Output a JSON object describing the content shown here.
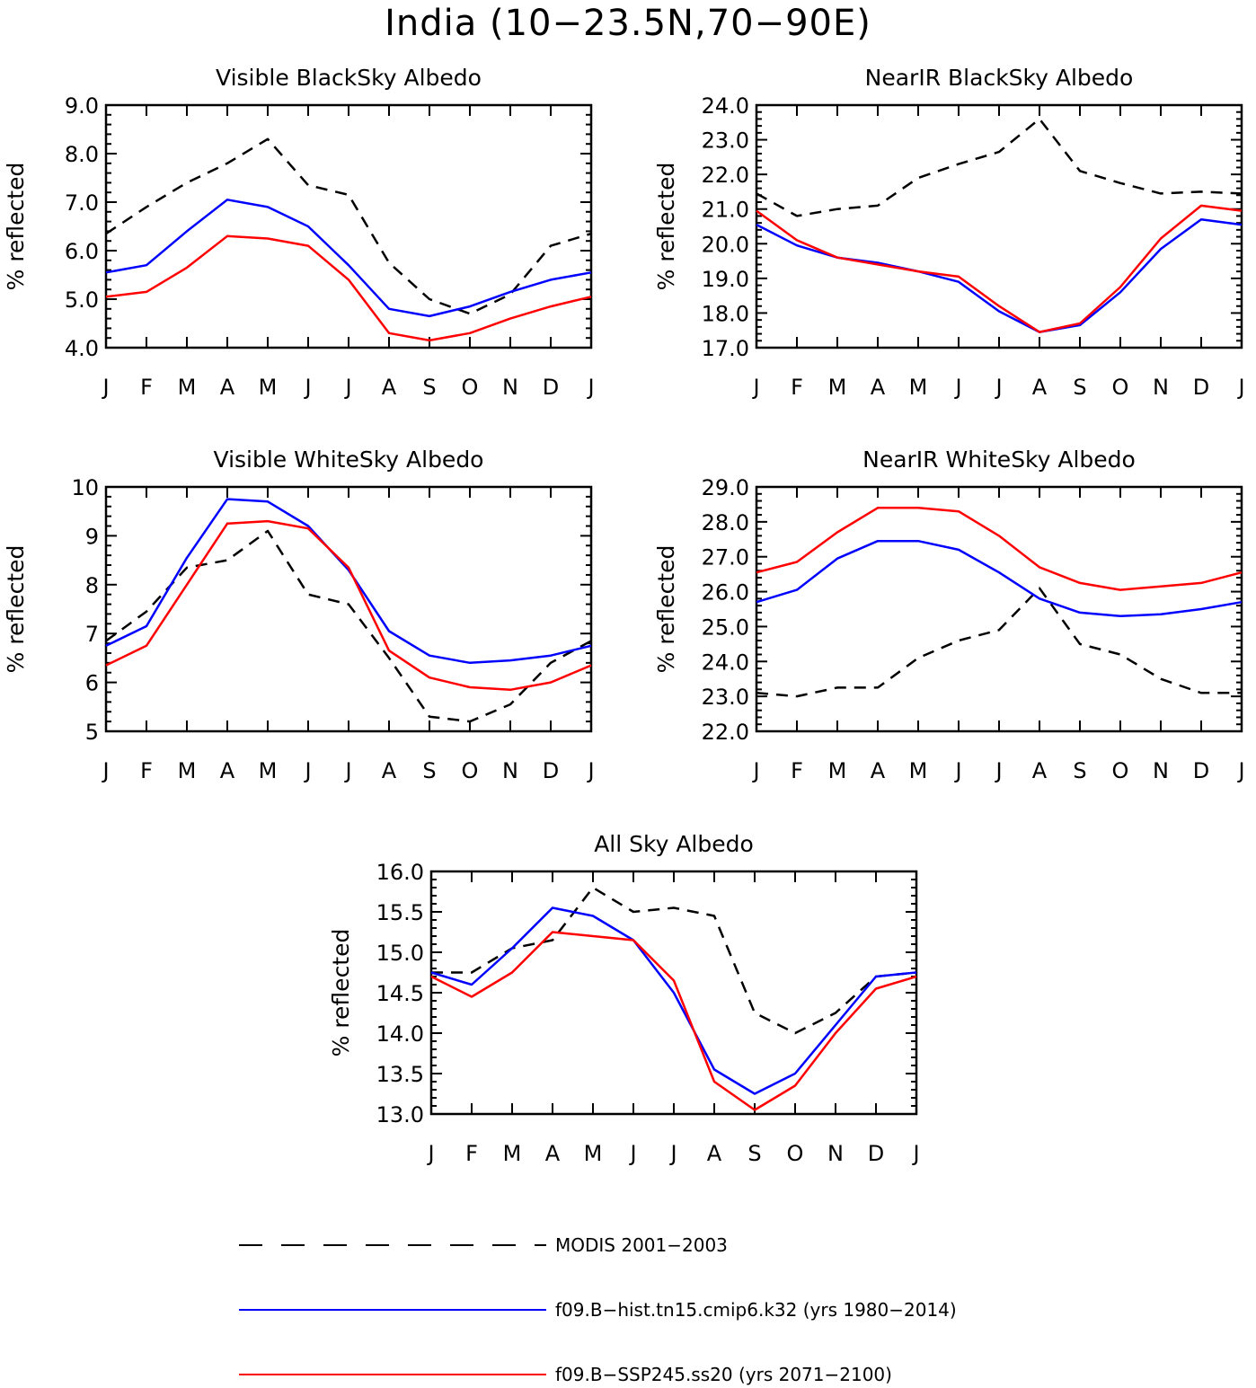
{
  "title": "India (10−23.5N,70−90E)",
  "colors": {
    "modis": "#000000",
    "hist": "#0000ff",
    "ssp": "#ff0000"
  },
  "legend": [
    {
      "key": "modis",
      "label": "MODIS 2001−2003",
      "style": "dashed"
    },
    {
      "key": "hist",
      "label": "f09.B−hist.tn15.cmip6.k32 (yrs 1980−2014)",
      "style": "solid"
    },
    {
      "key": "ssp",
      "label": "f09.B−SSP245.ss20 (yrs 2071−2100)",
      "style": "solid"
    }
  ],
  "chart_data": [
    {
      "type": "line",
      "title": "Visible BlackSky Albedo",
      "ylabel": "% reflected",
      "categories": [
        "J",
        "F",
        "M",
        "A",
        "M",
        "J",
        "J",
        "A",
        "S",
        "O",
        "N",
        "D",
        "J"
      ],
      "ylim": [
        4.0,
        9.0
      ],
      "yticks": [
        "4.0",
        "5.0",
        "6.0",
        "7.0",
        "8.0",
        "9.0"
      ],
      "series": [
        {
          "key": "modis",
          "name": "MODIS 2001−2003",
          "values": [
            6.35,
            6.9,
            7.4,
            7.8,
            8.3,
            7.35,
            7.15,
            5.75,
            5.0,
            4.7,
            5.1,
            6.1,
            6.35
          ]
        },
        {
          "key": "hist",
          "name": "f09.B−hist.tn15.cmip6.k32 (yrs 1980−2014)",
          "values": [
            5.55,
            5.7,
            6.4,
            7.05,
            6.9,
            6.5,
            5.7,
            4.8,
            4.65,
            4.85,
            5.15,
            5.4,
            5.55
          ]
        },
        {
          "key": "ssp",
          "name": "f09.B−SSP245.ss20 (yrs 2071−2100)",
          "values": [
            5.05,
            5.15,
            5.65,
            6.3,
            6.25,
            6.1,
            5.4,
            4.3,
            4.15,
            4.3,
            4.6,
            4.85,
            5.05
          ]
        }
      ]
    },
    {
      "type": "line",
      "title": "NearIR BlackSky Albedo",
      "ylabel": "% reflected",
      "categories": [
        "J",
        "F",
        "M",
        "A",
        "M",
        "J",
        "J",
        "A",
        "S",
        "O",
        "N",
        "D",
        "J"
      ],
      "ylim": [
        17.0,
        24.0
      ],
      "yticks": [
        "17.0",
        "18.0",
        "19.0",
        "20.0",
        "21.0",
        "22.0",
        "23.0",
        "24.0"
      ],
      "series": [
        {
          "key": "modis",
          "name": "MODIS 2001−2003",
          "values": [
            21.45,
            20.8,
            21.0,
            21.1,
            21.9,
            22.3,
            22.65,
            23.6,
            22.1,
            21.75,
            21.45,
            21.5,
            21.45
          ]
        },
        {
          "key": "hist",
          "name": "f09.B−hist.tn15.cmip6.k32 (yrs 1980−2014)",
          "values": [
            20.55,
            19.95,
            19.6,
            19.45,
            19.2,
            18.9,
            18.05,
            17.45,
            17.65,
            18.6,
            19.85,
            20.7,
            20.55
          ]
        },
        {
          "key": "ssp",
          "name": "f09.B−SSP245.ss20 (yrs 2071−2100)",
          "values": [
            20.95,
            20.1,
            19.6,
            19.4,
            19.2,
            19.05,
            18.2,
            17.45,
            17.7,
            18.75,
            20.15,
            21.1,
            20.95
          ]
        }
      ]
    },
    {
      "type": "line",
      "title": "Visible WhiteSky Albedo",
      "ylabel": "% reflected",
      "categories": [
        "J",
        "F",
        "M",
        "A",
        "M",
        "J",
        "J",
        "A",
        "S",
        "O",
        "N",
        "D",
        "J"
      ],
      "ylim": [
        5,
        10
      ],
      "yticks": [
        "5",
        "6",
        "7",
        "8",
        "9",
        "10"
      ],
      "series": [
        {
          "key": "modis",
          "name": "MODIS 2001−2003",
          "values": [
            6.85,
            7.45,
            8.35,
            8.5,
            9.1,
            7.8,
            7.6,
            6.5,
            5.3,
            5.2,
            5.55,
            6.4,
            6.85
          ]
        },
        {
          "key": "hist",
          "name": "f09.B−hist.tn15.cmip6.k32 (yrs 1980−2014)",
          "values": [
            6.75,
            7.15,
            8.55,
            9.75,
            9.7,
            9.2,
            8.3,
            7.05,
            6.55,
            6.4,
            6.45,
            6.55,
            6.75
          ]
        },
        {
          "key": "ssp",
          "name": "f09.B−SSP245.ss20 (yrs 2071−2100)",
          "values": [
            6.35,
            6.75,
            8.0,
            9.25,
            9.3,
            9.15,
            8.35,
            6.65,
            6.1,
            5.9,
            5.85,
            6.0,
            6.35
          ]
        }
      ]
    },
    {
      "type": "line",
      "title": "NearIR WhiteSky Albedo",
      "ylabel": "% reflected",
      "categories": [
        "J",
        "F",
        "M",
        "A",
        "M",
        "J",
        "J",
        "A",
        "S",
        "O",
        "N",
        "D",
        "J"
      ],
      "ylim": [
        22.0,
        29.0
      ],
      "yticks": [
        "22.0",
        "23.0",
        "24.0",
        "25.0",
        "26.0",
        "27.0",
        "28.0",
        "29.0"
      ],
      "series": [
        {
          "key": "modis",
          "name": "MODIS 2001−2003",
          "values": [
            23.1,
            23.0,
            23.25,
            23.25,
            24.1,
            24.6,
            24.9,
            26.1,
            24.5,
            24.2,
            23.5,
            23.1,
            23.1
          ]
        },
        {
          "key": "hist",
          "name": "f09.B−hist.tn15.cmip6.k32 (yrs 1980−2014)",
          "values": [
            25.7,
            26.05,
            26.95,
            27.45,
            27.45,
            27.2,
            26.55,
            25.8,
            25.4,
            25.3,
            25.35,
            25.5,
            25.7
          ]
        },
        {
          "key": "ssp",
          "name": "f09.B−SSP245.ss20 (yrs 2071−2100)",
          "values": [
            26.55,
            26.85,
            27.7,
            28.4,
            28.4,
            28.3,
            27.6,
            26.7,
            26.25,
            26.05,
            26.15,
            26.25,
            26.55
          ]
        }
      ]
    },
    {
      "type": "line",
      "title": "All Sky Albedo",
      "ylabel": "% reflected",
      "categories": [
        "J",
        "F",
        "M",
        "A",
        "M",
        "J",
        "J",
        "A",
        "S",
        "O",
        "N",
        "D",
        "J"
      ],
      "ylim": [
        13.0,
        16.0
      ],
      "yticks": [
        "13.0",
        "13.5",
        "14.0",
        "14.5",
        "15.0",
        "15.5",
        "16.0"
      ],
      "series": [
        {
          "key": "modis",
          "name": "MODIS 2001−2003",
          "values": [
            14.75,
            14.75,
            15.05,
            15.15,
            15.8,
            15.5,
            15.55,
            15.45,
            14.25,
            14.0,
            14.25,
            14.7,
            14.75
          ]
        },
        {
          "key": "hist",
          "name": "f09.B−hist.tn15.cmip6.k32 (yrs 1980−2014)",
          "values": [
            14.75,
            14.6,
            15.05,
            15.55,
            15.45,
            15.15,
            14.5,
            13.55,
            13.25,
            13.5,
            14.1,
            14.7,
            14.75
          ]
        },
        {
          "key": "ssp",
          "name": "f09.B−SSP245.ss20 (yrs 2071−2100)",
          "values": [
            14.7,
            14.45,
            14.75,
            15.25,
            15.2,
            15.15,
            14.65,
            13.4,
            13.05,
            13.35,
            14.0,
            14.55,
            14.7
          ]
        }
      ]
    }
  ]
}
